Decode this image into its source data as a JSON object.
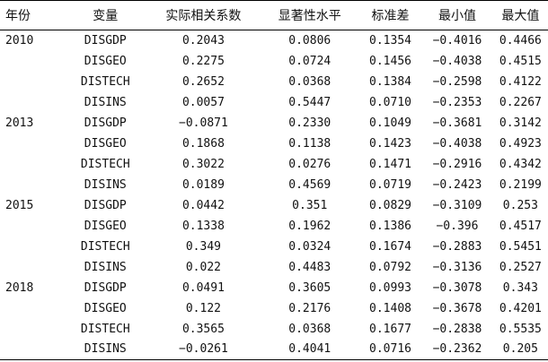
{
  "table": {
    "headers": [
      "年份",
      "变量",
      "实际相关系数",
      "显著性水平",
      "标准差",
      "最小值",
      "最大值"
    ],
    "rows": [
      [
        "2010",
        "DISGDP",
        "0.2043",
        "0.0806",
        "0.1354",
        "−0.4016",
        "0.4466"
      ],
      [
        "",
        "DISGEO",
        "0.2275",
        "0.0724",
        "0.1456",
        "−0.4038",
        "0.4515"
      ],
      [
        "",
        "DISTECH",
        "0.2652",
        "0.0368",
        "0.1384",
        "−0.2598",
        "0.4122"
      ],
      [
        "",
        "DISINS",
        "0.0057",
        "0.5447",
        "0.0710",
        "−0.2353",
        "0.2267"
      ],
      [
        "2013",
        "DISGDP",
        "−0.0871",
        "0.2330",
        "0.1049",
        "−0.3681",
        "0.3142"
      ],
      [
        "",
        "DISGEO",
        "0.1868",
        "0.1138",
        "0.1423",
        "−0.4038",
        "0.4923"
      ],
      [
        "",
        "DISTECH",
        "0.3022",
        "0.0276",
        "0.1471",
        "−0.2916",
        "0.4342"
      ],
      [
        "",
        "DISINS",
        "0.0189",
        "0.4569",
        "0.0719",
        "−0.2423",
        "0.2199"
      ],
      [
        "2015",
        "DISGDP",
        "0.0442",
        "0.351",
        "0.0829",
        "−0.3109",
        "0.253"
      ],
      [
        "",
        "DISGEO",
        "0.1338",
        "0.1962",
        "0.1386",
        "−0.396",
        "0.4517"
      ],
      [
        "",
        "DISTECH",
        "0.349",
        "0.0324",
        "0.1674",
        "−0.2883",
        "0.5451"
      ],
      [
        "",
        "DISINS",
        "0.022",
        "0.4483",
        "0.0792",
        "−0.3136",
        "0.2527"
      ],
      [
        "2018",
        "DISGDP",
        "0.0491",
        "0.3605",
        "0.0993",
        "−0.3078",
        "0.343"
      ],
      [
        "",
        "DISGEO",
        "0.122",
        "0.2176",
        "0.1408",
        "−0.3678",
        "0.4201"
      ],
      [
        "",
        "DISTECH",
        "0.3565",
        "0.0368",
        "0.1677",
        "−0.2838",
        "0.5535"
      ],
      [
        "",
        "DISINS",
        "−0.0261",
        "0.4041",
        "0.0716",
        "−0.2362",
        "0.205"
      ]
    ]
  }
}
